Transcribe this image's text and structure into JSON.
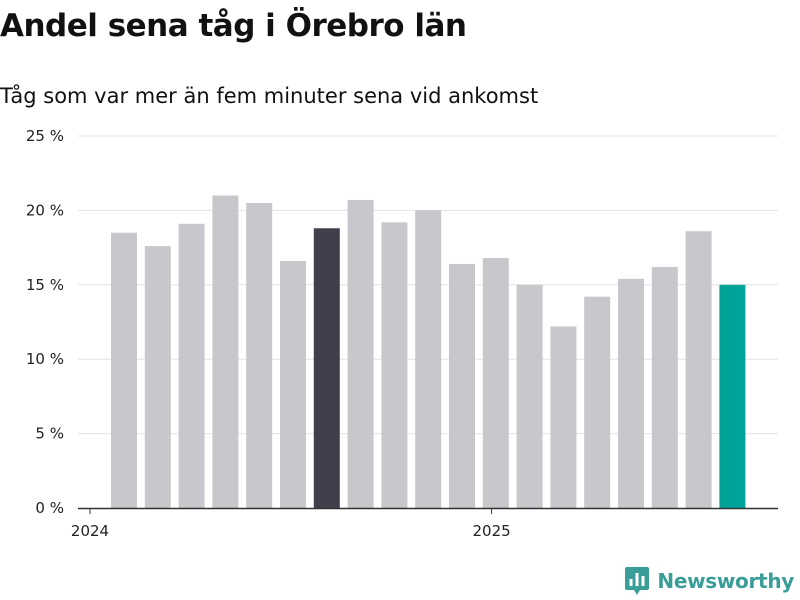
{
  "header": {
    "title": "Andel sena tåg i Örebro län",
    "subtitle": "Tåg som var mer än fem minuter sena vid ankomst"
  },
  "brand": {
    "name": "Newsworthy",
    "icon": "bar-chart-icon",
    "color": "#3a9d98"
  },
  "colors": {
    "default_bar": "#c8c7cc",
    "highlight_bar": "#403f4c",
    "latest_bar": "#00a39a"
  },
  "chart_data": {
    "type": "bar",
    "title": "Andel sena tåg i Örebro län",
    "subtitle": "Tåg som var mer än fem minuter sena vid ankomst",
    "xlabel": "",
    "ylabel": "",
    "ylim": [
      0,
      25
    ],
    "yticks": [
      0,
      5,
      10,
      15,
      20,
      25
    ],
    "ytick_labels": [
      "0 %",
      "5 %",
      "10 %",
      "15 %",
      "20 %",
      "25 %"
    ],
    "grid": true,
    "categories": [
      "2024-01",
      "2024-02",
      "2024-03",
      "2024-04",
      "2024-05",
      "2024-06",
      "2024-07",
      "2024-08",
      "2024-09",
      "2024-10",
      "2024-11",
      "2024-12",
      "2025-01",
      "2025-02",
      "2025-03",
      "2025-04",
      "2025-05",
      "2025-06",
      "2025-07"
    ],
    "values": [
      18.5,
      17.6,
      19.1,
      21.0,
      20.5,
      16.6,
      18.8,
      20.7,
      19.2,
      20.0,
      16.4,
      16.8,
      15.0,
      12.2,
      14.2,
      15.4,
      16.2,
      18.6,
      15.0
    ],
    "highlight_index": 6,
    "latest_index": 18,
    "xtick_labels": [
      {
        "label": "2024",
        "date": "2024-01-01"
      },
      {
        "label": "2025",
        "date": "2025-01-01"
      }
    ]
  }
}
